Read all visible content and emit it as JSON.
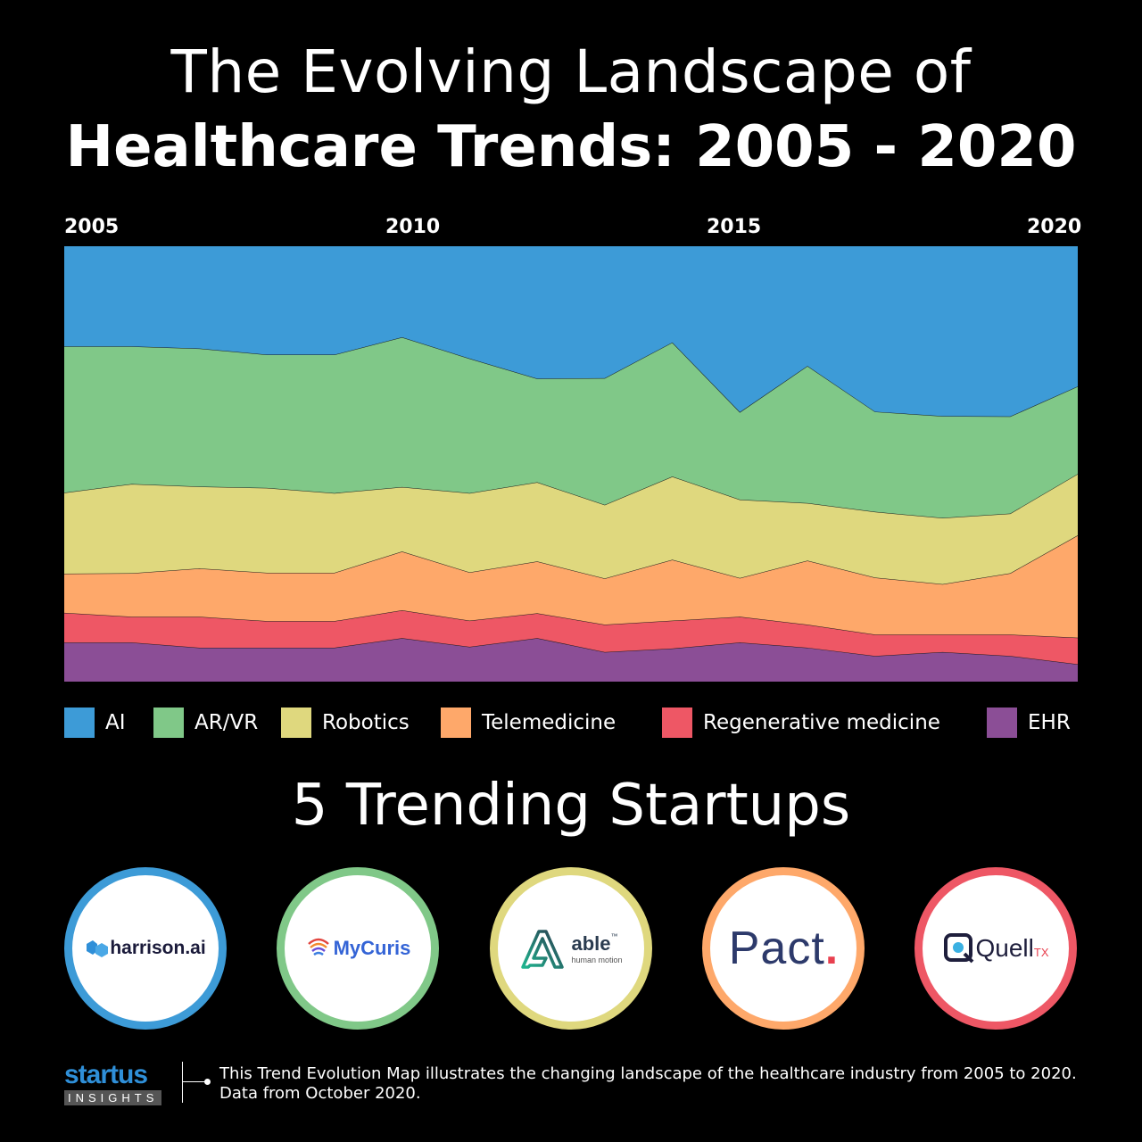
{
  "header": {
    "title_line1": "The Evolving Landscape of",
    "title_line2": "Healthcare Trends: 2005 - 2020"
  },
  "colors": {
    "AI": "#3d9bd7",
    "AR/VR": "#80c888",
    "Robotics": "#dfd87e",
    "Telemedicine": "#fea86a",
    "Regenerative medicine": "#ee5765",
    "EHR": "#8b4e96"
  },
  "chart_data": {
    "type": "area",
    "stacking": "percent",
    "x": [
      2005,
      2006,
      2007,
      2008,
      2009,
      2010,
      2011,
      2012,
      2013,
      2014,
      2015,
      2016,
      2017,
      2018,
      2019,
      2020
    ],
    "x_tick_labels": [
      "2005",
      "2010",
      "2015",
      "2020"
    ],
    "ylim": [
      0,
      100
    ],
    "series": [
      {
        "name": "EHR",
        "values": [
          9.0,
          9.0,
          7.8,
          7.8,
          7.8,
          10.0,
          8.0,
          10.0,
          6.8,
          7.6,
          9.0,
          7.8,
          5.9,
          6.8,
          5.9,
          4.0
        ]
      },
      {
        "name": "Regenerative medicine",
        "values": [
          6.8,
          5.9,
          7.1,
          6.1,
          6.1,
          6.4,
          6.0,
          5.7,
          6.3,
          6.4,
          5.9,
          5.3,
          4.9,
          4.0,
          4.9,
          6.1
        ]
      },
      {
        "name": "Telemedicine",
        "values": [
          9.0,
          10.0,
          11.1,
          11.1,
          11.1,
          13.5,
          11.1,
          11.9,
          10.6,
          14.0,
          8.9,
          14.7,
          13.1,
          11.6,
          14.1,
          23.5
        ]
      },
      {
        "name": "Robotics",
        "values": [
          18.6,
          20.5,
          18.8,
          19.5,
          18.3,
          14.8,
          18.2,
          18.2,
          16.9,
          19.1,
          18.0,
          13.2,
          15.1,
          15.2,
          13.7,
          14.1
        ]
      },
      {
        "name": "AR/VR",
        "values": [
          33.6,
          31.6,
          31.7,
          30.6,
          31.8,
          34.4,
          30.9,
          23.8,
          29.1,
          30.8,
          20.1,
          31.5,
          23.0,
          23.4,
          22.3,
          20.1
        ]
      },
      {
        "name": "AI",
        "values": [
          23.0,
          23.0,
          23.5,
          24.9,
          24.9,
          20.9,
          25.8,
          30.4,
          30.3,
          22.1,
          38.1,
          27.5,
          38.0,
          39.0,
          39.1,
          32.2
        ]
      }
    ],
    "legend": [
      "AI",
      "AR/VR",
      "Robotics",
      "Telemedicine",
      "Regenerative medicine",
      "EHR"
    ],
    "legend_position": "bottom",
    "grid": false
  },
  "startups_section": {
    "title": "5 Trending Startups",
    "startups": [
      {
        "name": "harrison.ai",
        "ring_color": "#3d9bd7",
        "logo_text": "harrison.ai"
      },
      {
        "name": "MyCuris",
        "ring_color": "#80c888",
        "logo_text": "MyCuris"
      },
      {
        "name": "able human motion",
        "ring_color": "#dfd87e",
        "logo_text": "able",
        "logo_tm": "™",
        "logo_sub": "human motion"
      },
      {
        "name": "Pact.",
        "ring_color": "#fea86a",
        "logo_text": "Pact",
        "logo_dot": "."
      },
      {
        "name": "QuellTX",
        "ring_color": "#ee5765",
        "logo_text": "Quell",
        "logo_suffix": "TX"
      }
    ]
  },
  "footer": {
    "brand_main": "startus",
    "brand_sub": "INSIGHTS",
    "description_line1": "This Trend Evolution Map illustrates the changing landscape of the healthcare industry from 2005 to 2020.",
    "description_line2": "Data from October 2020."
  }
}
